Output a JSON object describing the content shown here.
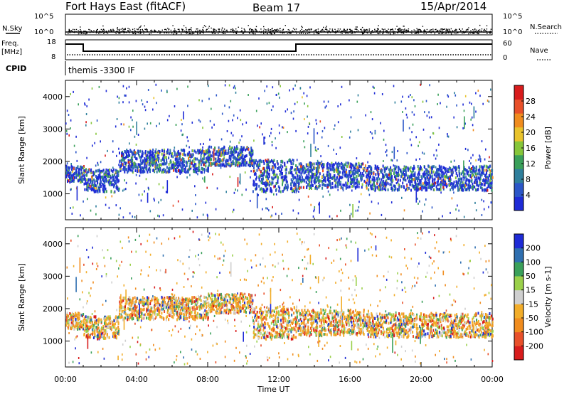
{
  "header": {
    "station": "Fort Hays East (fitACF)",
    "beam": "Beam 17",
    "date": "15/Apr/2014"
  },
  "top_panels": {
    "noise": {
      "left_label": "N.Sky",
      "right_label": "N.Search",
      "left_ticks": [
        "10^5",
        "10^0"
      ],
      "right_ticks": [
        "10^5",
        "10^0"
      ]
    },
    "freq": {
      "left_label_1": "Freq.",
      "left_label_2": "[MHz]",
      "right_label": "Nave",
      "left_ticks": [
        "18",
        "8"
      ],
      "right_ticks": [
        "60",
        "0"
      ]
    },
    "cpid": {
      "label": "CPID",
      "text": "themis -3300 IF"
    }
  },
  "colors": {
    "power": [
      "#1e2bd6",
      "#2b56c8",
      "#2f7f9c",
      "#3aa05a",
      "#86c63a",
      "#e9c32c",
      "#f08c1e",
      "#e8502a",
      "#d81c1c"
    ],
    "velocity": [
      "#d81c1c",
      "#e8502a",
      "#f08c1e",
      "#f2ad2a",
      "#cfcfcf",
      "#9ad04a",
      "#3aa05a",
      "#2f6fb0",
      "#1e2bd6"
    ]
  },
  "chart_data": [
    {
      "type": "scatter",
      "title": "",
      "ylabel": "Slant Range [km]",
      "ylim": [
        200,
        4500
      ],
      "yticks": [
        1000,
        2000,
        3000,
        4000
      ],
      "xlim": [
        0,
        24
      ],
      "xticks": [
        "00:00",
        "04:00",
        "08:00",
        "12:00",
        "16:00",
        "20:00",
        "00:00"
      ],
      "colorbar": {
        "label": "Power [dB]",
        "range": [
          0,
          32
        ],
        "ticks": [
          "4",
          "8",
          "12",
          "16",
          "20",
          "24",
          "28"
        ]
      },
      "bands": [
        {
          "x": [
            0,
            1
          ],
          "y": [
            1400,
            1900
          ]
        },
        {
          "x": [
            1,
            3
          ],
          "y": [
            1100,
            1800
          ]
        },
        {
          "x": [
            3,
            8
          ],
          "y": [
            1700,
            2400
          ]
        },
        {
          "x": [
            8,
            10.5
          ],
          "y": [
            1900,
            2500
          ]
        },
        {
          "x": [
            10.5,
            13
          ],
          "y": [
            1100,
            2100
          ]
        },
        {
          "x": [
            13,
            17
          ],
          "y": [
            1200,
            2000
          ]
        },
        {
          "x": [
            17,
            24
          ],
          "y": [
            1150,
            1900
          ]
        }
      ]
    },
    {
      "type": "scatter",
      "title": "",
      "xlabel": "Time UT",
      "ylabel": "Slant Range [km]",
      "ylim": [
        200,
        4500
      ],
      "yticks": [
        1000,
        2000,
        3000,
        4000
      ],
      "xlim": [
        0,
        24
      ],
      "xticks": [
        "00:00",
        "04:00",
        "08:00",
        "12:00",
        "16:00",
        "20:00",
        "00:00"
      ],
      "colorbar": {
        "label": "Velocity [m s-1]",
        "range": [
          -250,
          250
        ],
        "ticks": [
          "200",
          "100",
          "50",
          "15",
          "-15",
          "-50",
          "-100",
          "-200"
        ]
      },
      "bands": [
        {
          "x": [
            0,
            1
          ],
          "y": [
            1400,
            1900
          ]
        },
        {
          "x": [
            1,
            3
          ],
          "y": [
            1100,
            1800
          ]
        },
        {
          "x": [
            3,
            8
          ],
          "y": [
            1700,
            2400
          ]
        },
        {
          "x": [
            8,
            10.5
          ],
          "y": [
            1900,
            2500
          ]
        },
        {
          "x": [
            10.5,
            13
          ],
          "y": [
            1100,
            2100
          ]
        },
        {
          "x": [
            13,
            17
          ],
          "y": [
            1200,
            2000
          ]
        },
        {
          "x": [
            17,
            24
          ],
          "y": [
            1150,
            1900
          ]
        }
      ]
    }
  ],
  "axis": {
    "xlabel": "Time UT"
  }
}
